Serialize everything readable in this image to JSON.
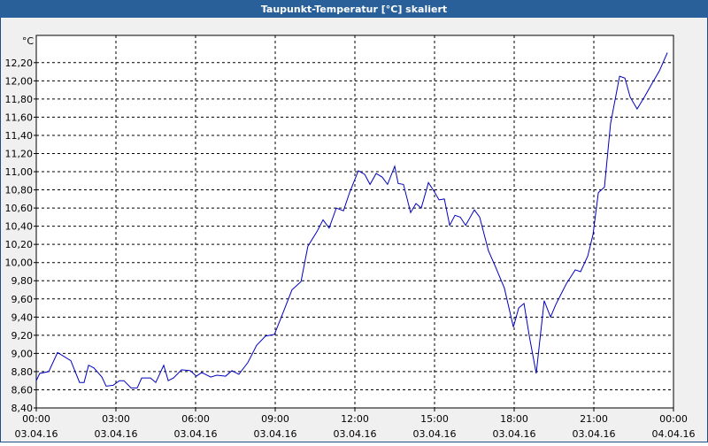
{
  "chart_data": {
    "type": "line",
    "title": "Taupunkt-Temperatur [°C] skaliert",
    "y_unit": "°C",
    "x": [
      0,
      0.13,
      0.47,
      0.8,
      1.3,
      1.63,
      1.8,
      1.97,
      2.17,
      2.47,
      2.63,
      2.9,
      3.13,
      3.3,
      3.57,
      3.8,
      3.97,
      4.3,
      4.5,
      4.8,
      4.97,
      5.17,
      5.47,
      5.8,
      6.03,
      6.23,
      6.57,
      6.8,
      7.13,
      7.37,
      7.63,
      7.97,
      8.3,
      8.63,
      8.97,
      9.23,
      9.63,
      9.97,
      10.23,
      10.57,
      10.8,
      11.03,
      11.3,
      11.57,
      11.8,
      12.13,
      12.37,
      12.57,
      12.8,
      13.03,
      13.23,
      13.5,
      13.63,
      13.83,
      14.1,
      14.3,
      14.5,
      14.77,
      14.97,
      15.17,
      15.37,
      15.57,
      15.77,
      15.97,
      16.17,
      16.5,
      16.7,
      17.03,
      17.3,
      17.63,
      17.97,
      18.17,
      18.37,
      18.57,
      18.83,
      19.13,
      19.37,
      19.57,
      19.97,
      20.3,
      20.5,
      20.77,
      20.97,
      21.17,
      21.4,
      21.63,
      21.97,
      22.17,
      22.37,
      22.63,
      22.9,
      23.17,
      23.47,
      23.77
    ],
    "series": [
      {
        "name": "Taupunkt-Temperatur",
        "color": "#0000c0",
        "values": [
          8.7,
          8.78,
          8.8,
          9.01,
          8.92,
          8.68,
          8.68,
          8.87,
          8.84,
          8.74,
          8.64,
          8.65,
          8.7,
          8.7,
          8.62,
          8.62,
          8.73,
          8.73,
          8.68,
          8.87,
          8.7,
          8.73,
          8.82,
          8.81,
          8.75,
          8.79,
          8.74,
          8.76,
          8.75,
          8.81,
          8.77,
          8.9,
          9.09,
          9.19,
          9.21,
          9.4,
          9.7,
          9.79,
          10.18,
          10.34,
          10.47,
          10.38,
          10.6,
          10.57,
          10.77,
          11.01,
          10.97,
          10.86,
          10.98,
          10.94,
          10.86,
          11.06,
          10.87,
          10.86,
          10.55,
          10.65,
          10.6,
          10.88,
          10.79,
          10.69,
          10.7,
          10.41,
          10.52,
          10.5,
          10.41,
          10.58,
          10.5,
          10.13,
          9.95,
          9.72,
          9.29,
          9.5,
          9.55,
          9.19,
          8.78,
          9.58,
          9.4,
          9.54,
          9.77,
          9.92,
          9.9,
          10.07,
          10.31,
          10.77,
          10.83,
          11.53,
          12.05,
          12.03,
          11.82,
          11.69,
          11.82,
          11.96,
          12.11,
          12.31
        ]
      }
    ],
    "xlim": [
      0,
      24
    ],
    "xticks": [
      {
        "value": 0,
        "label": "00:00"
      },
      {
        "value": 3,
        "label": "03:00"
      },
      {
        "value": 6,
        "label": "06:00"
      },
      {
        "value": 9,
        "label": "09:00"
      },
      {
        "value": 12,
        "label": "12:00"
      },
      {
        "value": 15,
        "label": "15:00"
      },
      {
        "value": 18,
        "label": "18:00"
      },
      {
        "value": 21,
        "label": "21:00"
      },
      {
        "value": 24,
        "label": "00:00"
      }
    ],
    "xtick_dates": [
      "03.04.16",
      "03.04.16",
      "03.04.16",
      "03.04.16",
      "03.04.16",
      "03.04.16",
      "03.04.16",
      "03.04.16",
      "04.04.16"
    ],
    "ylim": [
      8.4,
      12.5
    ],
    "yticks": [
      {
        "value": 8.4,
        "label": "8,40"
      },
      {
        "value": 8.6,
        "label": "8,60"
      },
      {
        "value": 8.8,
        "label": "8,80"
      },
      {
        "value": 9,
        "label": "9,00"
      },
      {
        "value": 9.2,
        "label": "9,20"
      },
      {
        "value": 9.4,
        "label": "9,40"
      },
      {
        "value": 9.6,
        "label": "9,60"
      },
      {
        "value": 9.8,
        "label": "9,80"
      },
      {
        "value": 10,
        "label": "10,00"
      },
      {
        "value": 10.2,
        "label": "10,20"
      },
      {
        "value": 10.4,
        "label": "10,40"
      },
      {
        "value": 10.6,
        "label": "10,60"
      },
      {
        "value": 10.8,
        "label": "10,80"
      },
      {
        "value": 11,
        "label": "11,00"
      },
      {
        "value": 11.2,
        "label": "11,20"
      },
      {
        "value": 11.4,
        "label": "11,40"
      },
      {
        "value": 11.6,
        "label": "11,60"
      },
      {
        "value": 11.8,
        "label": "11,80"
      },
      {
        "value": 12,
        "label": "12,00"
      },
      {
        "value": 12.2,
        "label": "12,20"
      }
    ],
    "grid": true
  }
}
